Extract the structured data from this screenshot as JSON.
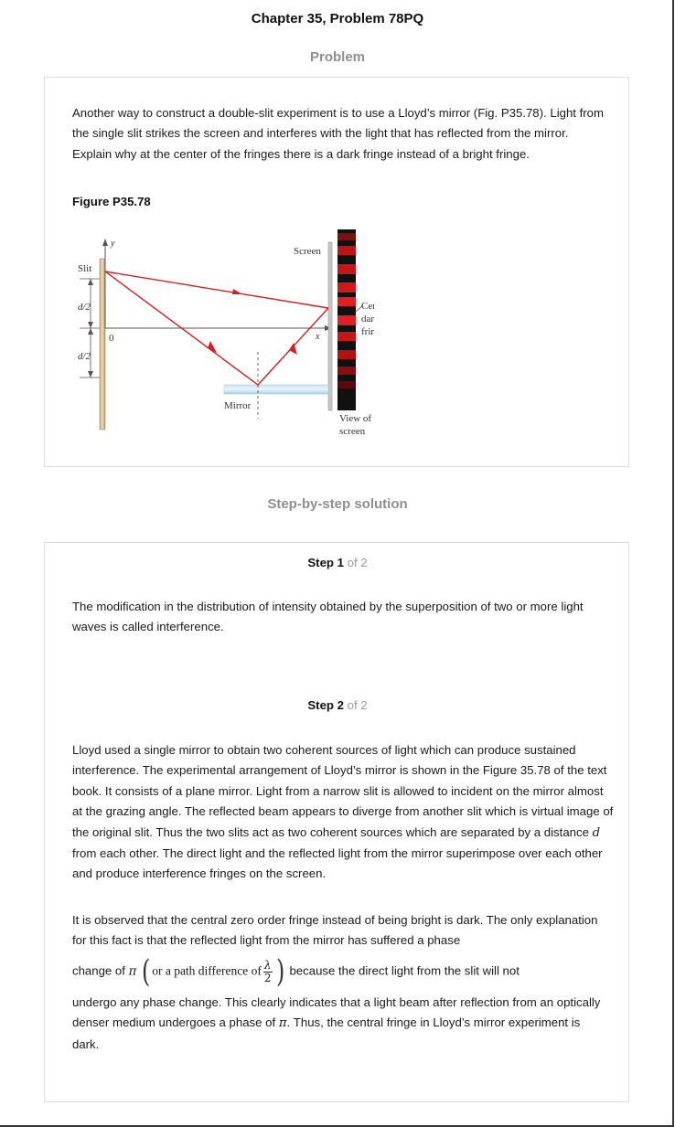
{
  "header": {
    "title": "Chapter 35, Problem 78PQ"
  },
  "problem": {
    "heading": "Problem",
    "text": "Another way to construct a double-slit experiment is to use a Lloyd’s mirror (Fig. P35.78). Light from the single slit strikes the screen and interferes with the light that has reflected from the mirror. Explain why at the center of the fringes there is a dark fringe instead of a bright fringe.",
    "figure_label": "Figure P35.78",
    "figure": {
      "slit_label": "Slit",
      "y_label": "y",
      "half_d_top": "d/2",
      "half_d_bottom": "d/2",
      "zero_label": "0",
      "screen_label": "Screen",
      "x_label": "x",
      "mirror_label": "Mirror",
      "central_line1": "Central",
      "central_line2": "dark",
      "central_line3": "fringe",
      "view_line1": "View of",
      "view_line2": "screen"
    }
  },
  "solution": {
    "heading": "Step-by-step solution",
    "step1": {
      "label": "Step 1",
      "of_text": "of 2",
      "text": "The modification in the distribution of intensity obtained by the superposition of two or more light waves is called interference."
    },
    "step2": {
      "label": "Step 2",
      "of_text": "of 2",
      "para1_a": "Lloyd used a single mirror to obtain two coherent sources of light which can produce sustained interference. The experimental arrangement of Lloyd’s mirror is shown in the Figure 35.78 of the text book. It consists of a plane mirror. Light from a narrow slit is allowed to incident on the mirror almost at the grazing angle. The reflected beam appears to diverge from another slit which is virtual image of the original slit. Thus the two slits act as two coherent sources which are separated by a distance ",
      "para1_d": "d",
      "para1_b": " from each other. The direct light and the reflected light from the mirror superimpose over each other and produce interference fringes on the screen.",
      "para2": "It is observed that the central zero order fringe instead of being bright is dark. The only explanation for this fact is that the reflected light from the mirror has suffered a phase",
      "phase_prefix": "change of ",
      "pi": "π",
      "path_text": "or a path difference of",
      "lambda": "λ",
      "two": "2",
      "phase_suffix": "because the direct light from the slit will not",
      "para3_a": "undergo any phase change. This clearly indicates that a light beam after reflection from an optically denser medium undergoes a phase of ",
      "para3_pi": "π",
      "para3_b": ". Thus, the central fringe in Lloyd’s mirror experiment is dark."
    }
  }
}
